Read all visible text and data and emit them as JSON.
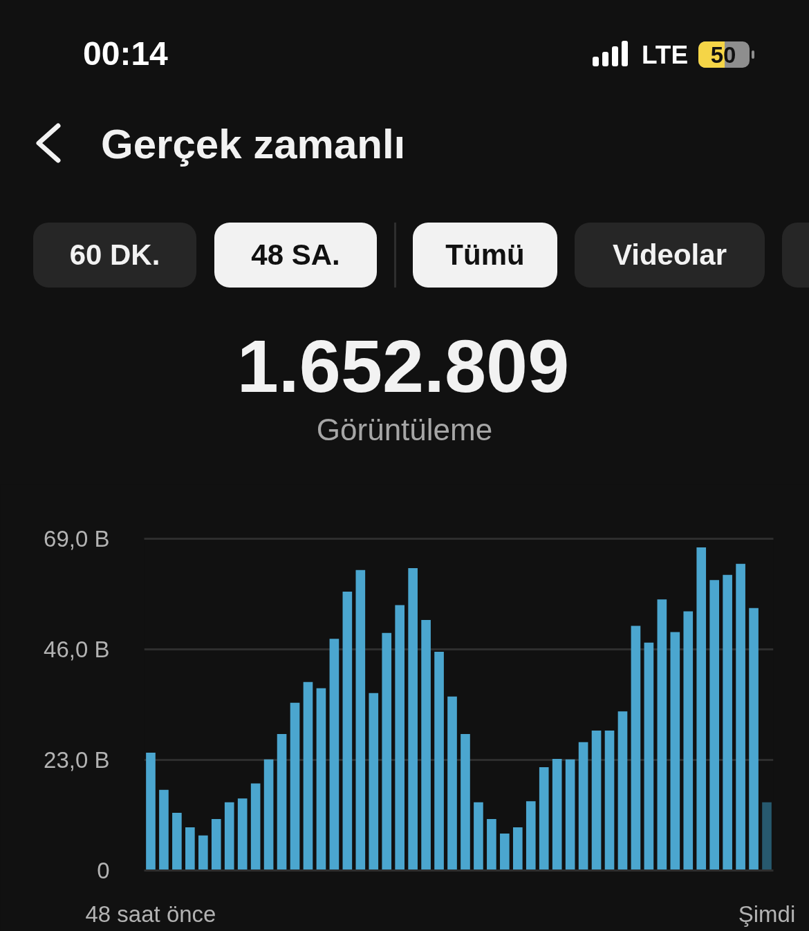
{
  "chart_data": {
    "type": "bar",
    "title": "Gerçek zamanlı",
    "subtitle": "Görüntüleme",
    "annotations": [
      "00:14",
      "LTE",
      "50",
      "60 DK.",
      "48 SA.",
      "Tümü",
      "Videolar",
      "1.652.809"
    ],
    "categories": [
      "48 saat önce",
      null,
      null,
      null,
      null,
      null,
      null,
      null,
      null,
      null,
      null,
      null,
      null,
      null,
      null,
      null,
      null,
      null,
      null,
      null,
      null,
      null,
      null,
      null,
      null,
      null,
      null,
      null,
      null,
      null,
      null,
      null,
      null,
      null,
      null,
      null,
      null,
      null,
      null,
      null,
      null,
      null,
      null,
      null,
      null,
      null,
      null,
      "Şimdi"
    ],
    "values": [
      24.5,
      16.8,
      12.0,
      9.0,
      7.3,
      10.7,
      14.2,
      15.0,
      18.1,
      23.1,
      28.4,
      34.9,
      39.2,
      37.9,
      48.2,
      58.0,
      62.5,
      36.9,
      49.4,
      55.2,
      62.9,
      52.1,
      45.5,
      36.2,
      28.4,
      14.2,
      10.7,
      7.7,
      9.0,
      14.4,
      21.5,
      23.2,
      23.1,
      26.7,
      29.1,
      29.1,
      33.1,
      50.9,
      47.4,
      56.4,
      49.6,
      53.9,
      67.2,
      60.4,
      61.5,
      63.8,
      54.6,
      14.2
    ],
    "colors": [
      "#4ba6cf",
      "#4ba6cf",
      "#4ba6cf",
      "#4ba6cf",
      "#4ba6cf",
      "#4ba6cf",
      "#4ba6cf",
      "#4ba6cf",
      "#4ba6cf",
      "#4ba6cf",
      "#4ba6cf",
      "#4ba6cf",
      "#4ba6cf",
      "#4ba6cf",
      "#4ba6cf",
      "#4ba6cf",
      "#4ba6cf",
      "#4ba6cf",
      "#4ba6cf",
      "#4ba6cf",
      "#4ba6cf",
      "#4ba6cf",
      "#4ba6cf",
      "#4ba6cf",
      "#4ba6cf",
      "#4ba6cf",
      "#4ba6cf",
      "#4ba6cf",
      "#4ba6cf",
      "#4ba6cf",
      "#4ba6cf",
      "#4ba6cf",
      "#4ba6cf",
      "#4ba6cf",
      "#4ba6cf",
      "#4ba6cf",
      "#4ba6cf",
      "#4ba6cf",
      "#4ba6cf",
      "#4ba6cf",
      "#4ba6cf",
      "#4ba6cf",
      "#4ba6cf",
      "#4ba6cf",
      "#4ba6cf",
      "#4ba6cf",
      "#4ba6cf",
      "#27596e"
    ],
    "ylim": [
      0,
      69
    ],
    "yticks": [
      0,
      {
        "value": 23,
        "label": "23,0 B"
      },
      {
        "value": 46,
        "label": "46,0 B"
      },
      {
        "value": 69,
        "label": "69,0 B"
      }
    ],
    "grid": "y"
  }
}
